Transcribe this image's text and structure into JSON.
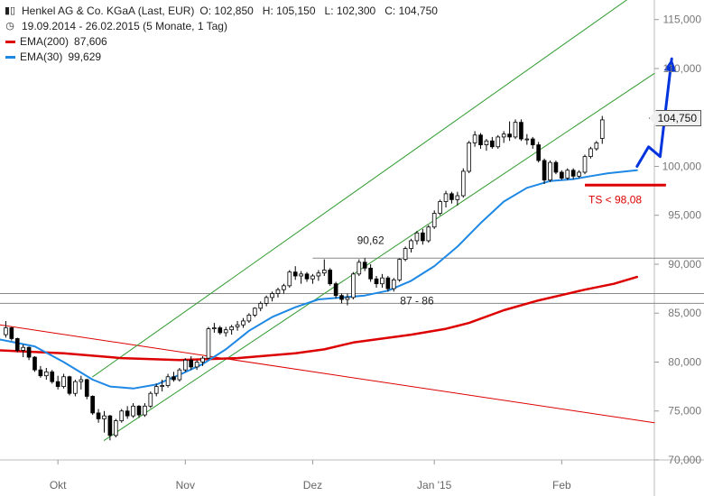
{
  "header": {
    "title": "Henkel AG & Co. KGaA (Last, EUR)",
    "ohlc": "O: 102,850   H: 105,150   L: 102,300   C: 104,750",
    "range": "19.09.2014 - 26.02.2015 (5 Monate, 1 Tag)",
    "icons": {
      "title": "candlestick-icon",
      "range": "clock-icon"
    }
  },
  "last_tag": "104,750",
  "chart_data": {
    "type": "candlestick",
    "ylim": [
      70000,
      117000
    ],
    "y_ticks": [
      70000,
      75000,
      80000,
      85000,
      90000,
      95000,
      100000,
      105000,
      110000,
      115000
    ],
    "y_tick_labels": [
      "70,000",
      "75,000",
      "80,000",
      "85,000",
      "90,000",
      "95,000",
      "100,000",
      "105,000",
      "110,000",
      "115,000"
    ],
    "x_months": [
      {
        "label": "Okt",
        "day": 9
      },
      {
        "label": "Nov",
        "day": 31
      },
      {
        "label": "Dez",
        "day": 53
      },
      {
        "label": "Jan '15",
        "day": 74
      },
      {
        "label": "Feb",
        "day": 96
      }
    ],
    "day_range": [
      -1,
      112
    ],
    "ohlc": [
      [
        82.8,
        84.2,
        82.5,
        83.5
      ],
      [
        83.5,
        83.6,
        82.2,
        82.4
      ],
      [
        82.4,
        82.5,
        81.0,
        81.2
      ],
      [
        81.2,
        81.8,
        80.5,
        81.5
      ],
      [
        81.5,
        81.6,
        80.2,
        80.5
      ],
      [
        80.5,
        80.6,
        79.0,
        79.2
      ],
      [
        79.2,
        79.6,
        78.4,
        78.6
      ],
      [
        78.6,
        79.4,
        78.2,
        79.0
      ],
      [
        79.0,
        79.2,
        77.8,
        78.0
      ],
      [
        78.0,
        78.6,
        77.2,
        77.5
      ],
      [
        77.5,
        78.8,
        77.3,
        78.5
      ],
      [
        78.5,
        78.6,
        76.6,
        76.8
      ],
      [
        76.8,
        78.2,
        76.5,
        78.0
      ],
      [
        78.0,
        78.6,
        77.2,
        78.2
      ],
      [
        78.2,
        78.3,
        76.2,
        76.5
      ],
      [
        76.5,
        76.6,
        74.6,
        74.8
      ],
      [
        74.8,
        75.2,
        73.8,
        74.2
      ],
      [
        74.2,
        75.0,
        72.8,
        74.5
      ],
      [
        74.5,
        74.6,
        72.0,
        72.5
      ],
      [
        72.5,
        74.2,
        72.3,
        74.0
      ],
      [
        74.0,
        75.2,
        73.8,
        75.0
      ],
      [
        75.0,
        75.5,
        74.2,
        74.5
      ],
      [
        74.5,
        75.8,
        74.3,
        75.5
      ],
      [
        75.5,
        75.6,
        74.3,
        74.6
      ],
      [
        74.6,
        75.8,
        74.4,
        75.5
      ],
      [
        75.5,
        77.0,
        75.3,
        76.8
      ],
      [
        76.8,
        77.8,
        76.5,
        77.5
      ],
      [
        77.5,
        78.2,
        77.0,
        77.6
      ],
      [
        77.6,
        78.8,
        77.4,
        78.5
      ],
      [
        78.5,
        79.0,
        78.0,
        78.2
      ],
      [
        78.2,
        79.4,
        78.0,
        79.2
      ],
      [
        79.2,
        80.4,
        79.0,
        80.2
      ],
      [
        80.2,
        80.6,
        79.2,
        79.5
      ],
      [
        79.5,
        80.2,
        79.2,
        80.0
      ],
      [
        80.0,
        80.6,
        79.6,
        80.4
      ],
      [
        80.4,
        83.6,
        80.3,
        83.4
      ],
      [
        83.4,
        84.0,
        83.0,
        83.5
      ],
      [
        83.5,
        83.7,
        82.8,
        83.0
      ],
      [
        83.0,
        83.6,
        82.6,
        83.3
      ],
      [
        83.3,
        83.8,
        82.8,
        83.6
      ],
      [
        83.6,
        84.2,
        83.2,
        83.8
      ],
      [
        83.8,
        84.5,
        83.5,
        84.2
      ],
      [
        84.2,
        85.0,
        84.0,
        84.8
      ],
      [
        84.8,
        85.6,
        84.6,
        85.5
      ],
      [
        85.5,
        86.2,
        85.2,
        86.0
      ],
      [
        86.0,
        86.8,
        85.7,
        86.6
      ],
      [
        86.6,
        87.2,
        86.2,
        87.0
      ],
      [
        87.0,
        87.6,
        86.6,
        87.4
      ],
      [
        87.4,
        88.0,
        87.0,
        87.8
      ],
      [
        87.8,
        89.4,
        87.6,
        89.2
      ],
      [
        89.2,
        89.8,
        88.4,
        88.8
      ],
      [
        88.8,
        89.3,
        88.0,
        89.0
      ],
      [
        89.0,
        89.2,
        88.2,
        88.5
      ],
      [
        88.5,
        89.0,
        88.0,
        88.8
      ],
      [
        88.8,
        89.4,
        88.3,
        89.1
      ],
      [
        89.1,
        90.5,
        88.8,
        89.4
      ],
      [
        89.4,
        89.6,
        87.8,
        88.0
      ],
      [
        88.0,
        88.2,
        86.5,
        86.8
      ],
      [
        86.8,
        87.0,
        86.0,
        86.4
      ],
      [
        86.4,
        87.0,
        85.8,
        86.6
      ],
      [
        86.6,
        89.2,
        86.4,
        89.0
      ],
      [
        89.0,
        90.5,
        88.8,
        90.2
      ],
      [
        90.2,
        90.62,
        89.3,
        89.6
      ],
      [
        89.6,
        90.0,
        88.2,
        88.5
      ],
      [
        88.5,
        88.8,
        87.6,
        88.0
      ],
      [
        88.0,
        89.0,
        87.6,
        88.6
      ],
      [
        88.6,
        88.8,
        87.2,
        87.5
      ],
      [
        87.5,
        88.6,
        87.2,
        88.4
      ],
      [
        88.4,
        90.6,
        88.2,
        90.5
      ],
      [
        90.5,
        91.8,
        90.3,
        91.6
      ],
      [
        91.6,
        92.6,
        91.2,
        92.4
      ],
      [
        92.4,
        93.4,
        92.0,
        93.2
      ],
      [
        93.2,
        93.6,
        92.0,
        92.4
      ],
      [
        92.4,
        94.0,
        92.2,
        93.8
      ],
      [
        93.8,
        95.5,
        93.6,
        95.2
      ],
      [
        95.2,
        96.6,
        95.0,
        96.4
      ],
      [
        96.4,
        97.5,
        95.8,
        97.2
      ],
      [
        97.2,
        97.4,
        96.2,
        96.6
      ],
      [
        96.6,
        97.4,
        96.0,
        97.0
      ],
      [
        97.0,
        99.8,
        96.8,
        99.5
      ],
      [
        99.5,
        102.6,
        99.3,
        102.4
      ],
      [
        102.4,
        103.6,
        102.0,
        103.2
      ],
      [
        103.2,
        103.4,
        101.8,
        102.2
      ],
      [
        102.2,
        102.8,
        101.6,
        102.6
      ],
      [
        102.6,
        103.0,
        101.8,
        102.0
      ],
      [
        102.0,
        103.2,
        101.8,
        103.0
      ],
      [
        103.0,
        103.6,
        102.4,
        103.3
      ],
      [
        103.3,
        104.6,
        102.6,
        103.0
      ],
      [
        103.0,
        104.8,
        102.8,
        104.5
      ],
      [
        104.5,
        104.8,
        102.6,
        102.8
      ],
      [
        102.8,
        103.3,
        102.2,
        102.8
      ],
      [
        102.8,
        103.0,
        101.8,
        102.2
      ],
      [
        102.2,
        102.5,
        100.4,
        100.6
      ],
      [
        100.6,
        100.8,
        98.2,
        98.6
      ],
      [
        98.6,
        100.6,
        98.4,
        100.4
      ],
      [
        100.4,
        100.6,
        99.2,
        99.4
      ],
      [
        99.4,
        99.6,
        98.6,
        98.8
      ],
      [
        98.8,
        99.8,
        98.6,
        99.6
      ],
      [
        99.6,
        99.8,
        98.7,
        99.0
      ],
      [
        99.0,
        99.6,
        98.8,
        99.4
      ],
      [
        99.4,
        101.2,
        99.2,
        101.0
      ],
      [
        101.0,
        102.0,
        100.8,
        101.8
      ],
      [
        101.8,
        102.6,
        101.6,
        102.4
      ],
      [
        102.85,
        105.15,
        102.3,
        104.75
      ]
    ],
    "ema200": {
      "name": "EMA(200)",
      "value": "87,606",
      "color": "#dd0000",
      "points": [
        [
          -1,
          81.2
        ],
        [
          10,
          80.9
        ],
        [
          20,
          80.4
        ],
        [
          30,
          80.2
        ],
        [
          40,
          80.4
        ],
        [
          50,
          80.9
        ],
        [
          55,
          81.3
        ],
        [
          60,
          82.0
        ],
        [
          70,
          82.8
        ],
        [
          76,
          83.4
        ],
        [
          80,
          84.0
        ],
        [
          86,
          85.3
        ],
        [
          92,
          86.3
        ],
        [
          100,
          87.4
        ],
        [
          105,
          88.0
        ],
        [
          109,
          88.7
        ]
      ]
    },
    "ema30": {
      "name": "EMA(30)",
      "value": "99,629",
      "color": "#1e88e5",
      "points": [
        [
          -1,
          82.3
        ],
        [
          5,
          81.6
        ],
        [
          10,
          80.0
        ],
        [
          15,
          78.2
        ],
        [
          18,
          77.5
        ],
        [
          22,
          77.3
        ],
        [
          26,
          77.7
        ],
        [
          30,
          78.7
        ],
        [
          34,
          79.8
        ],
        [
          38,
          81.3
        ],
        [
          42,
          83.2
        ],
        [
          46,
          84.6
        ],
        [
          50,
          85.6
        ],
        [
          54,
          86.4
        ],
        [
          58,
          86.6
        ],
        [
          62,
          86.8
        ],
        [
          66,
          87.3
        ],
        [
          70,
          88.3
        ],
        [
          74,
          89.8
        ],
        [
          78,
          91.8
        ],
        [
          82,
          94.2
        ],
        [
          86,
          96.4
        ],
        [
          90,
          97.8
        ],
        [
          94,
          98.5
        ],
        [
          98,
          98.7
        ],
        [
          101,
          99.0
        ],
        [
          104,
          99.3
        ],
        [
          109,
          99.6
        ]
      ]
    },
    "trend_channel": {
      "upper": [
        [
          15,
          78.5
        ],
        [
          112,
          119.0
        ]
      ],
      "lower": [
        [
          17,
          72.0
        ],
        [
          112,
          109.5
        ]
      ],
      "color": "#2e9b2e"
    },
    "downtrend_line": {
      "points": [
        [
          -1,
          83.8
        ],
        [
          112,
          73.8
        ]
      ],
      "color": "#dd0000"
    },
    "horizontal_levels": [
      {
        "value": 90.62,
        "label": "90,62",
        "from_day": 53
      },
      {
        "value": 87.0,
        "label": "87 - 86"
      },
      {
        "value": 86.0
      }
    ],
    "stop_level": {
      "value": 98.08,
      "label": "TS < 98,08",
      "from_day": 100,
      "to_day": 114,
      "color": "#dd0000"
    },
    "forecast_arrow": {
      "points": [
        [
          109,
          100.0
        ],
        [
          111,
          102.0
        ],
        [
          113,
          101.0
        ],
        [
          115,
          111.0
        ]
      ],
      "color": "#0033dd"
    }
  }
}
